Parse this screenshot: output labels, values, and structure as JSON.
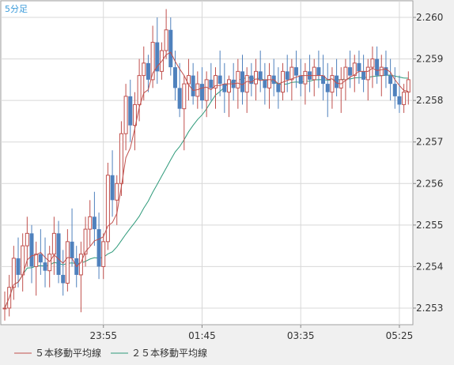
{
  "chart_data": {
    "type": "candlestick",
    "period_label": "5分足",
    "ylim": [
      2.2526,
      2.2604
    ],
    "y_ticks": [
      "2.260",
      "2.259",
      "2.258",
      "2.257",
      "2.256",
      "2.255",
      "2.254",
      "2.253"
    ],
    "x_ticks": [
      "23:55",
      "01:45",
      "03:35",
      "05:25"
    ],
    "grid": true,
    "legend_position": "bottom-left",
    "legend": [
      {
        "label": "５本移動平均線",
        "color": "#c0504d"
      },
      {
        "label": "２５本移動平均線",
        "color": "#2e9a7a"
      }
    ],
    "colors": {
      "up": "#c0504d",
      "down": "#4f81bd",
      "grid": "#d8d8d8",
      "plot_bg": "#ffffff"
    },
    "candles": [
      [
        2.253,
        2.2534,
        2.2527,
        2.253
      ],
      [
        2.253,
        2.2538,
        2.2528,
        2.2535
      ],
      [
        2.2535,
        2.2545,
        2.2532,
        2.2542
      ],
      [
        2.2542,
        2.2547,
        2.2535,
        2.2538
      ],
      [
        2.2538,
        2.2548,
        2.2534,
        2.2545
      ],
      [
        2.2545,
        2.2552,
        2.254,
        2.2548
      ],
      [
        2.2548,
        2.255,
        2.2536,
        2.254
      ],
      [
        2.254,
        2.2546,
        2.2533,
        2.2543
      ],
      [
        2.2543,
        2.2549,
        2.2538,
        2.2541
      ],
      [
        2.2541,
        2.2547,
        2.2535,
        2.2539
      ],
      [
        2.2539,
        2.2545,
        2.2535,
        2.2543
      ],
      [
        2.2543,
        2.2552,
        2.2538,
        2.2548
      ],
      [
        2.2548,
        2.2551,
        2.2536,
        2.2538
      ],
      [
        2.2538,
        2.2544,
        2.2533,
        2.2536
      ],
      [
        2.2536,
        2.2549,
        2.2534,
        2.2546
      ],
      [
        2.2546,
        2.2554,
        2.254,
        2.2542
      ],
      [
        2.2542,
        2.2545,
        2.2535,
        2.2538
      ],
      [
        2.2538,
        2.2546,
        2.2529,
        2.2543
      ],
      [
        2.2543,
        2.2552,
        2.254,
        2.2549
      ],
      [
        2.2549,
        2.2556,
        2.2545,
        2.2552
      ],
      [
        2.2552,
        2.2558,
        2.2545,
        2.2549
      ],
      [
        2.2549,
        2.2553,
        2.2537,
        2.254
      ],
      [
        2.254,
        2.2548,
        2.2537,
        2.2546
      ],
      [
        2.2546,
        2.2565,
        2.2544,
        2.2562
      ],
      [
        2.2562,
        2.2568,
        2.2552,
        2.2556
      ],
      [
        2.2556,
        2.2562,
        2.255,
        2.256
      ],
      [
        2.256,
        2.2575,
        2.2557,
        2.2572
      ],
      [
        2.2572,
        2.2584,
        2.2568,
        2.2581
      ],
      [
        2.2581,
        2.2585,
        2.257,
        2.2574
      ],
      [
        2.2574,
        2.2582,
        2.2568,
        2.2579
      ],
      [
        2.2579,
        2.259,
        2.2575,
        2.2586
      ],
      [
        2.2586,
        2.2593,
        2.258,
        2.2589
      ],
      [
        2.2589,
        2.2591,
        2.2582,
        2.2585
      ],
      [
        2.2585,
        2.2598,
        2.2583,
        2.2594
      ],
      [
        2.2594,
        2.26,
        2.2584,
        2.2587
      ],
      [
        2.2587,
        2.2594,
        2.2585,
        2.2592
      ],
      [
        2.2592,
        2.2602,
        2.259,
        2.2597
      ],
      [
        2.2597,
        2.26,
        2.2586,
        2.2588
      ],
      [
        2.2588,
        2.2592,
        2.258,
        2.2583
      ],
      [
        2.2583,
        2.2589,
        2.2576,
        2.2578
      ],
      [
        2.2578,
        2.2586,
        2.2568,
        2.2584
      ],
      [
        2.2584,
        2.259,
        2.258,
        2.2586
      ],
      [
        2.2586,
        2.2589,
        2.2579,
        2.2581
      ],
      [
        2.2581,
        2.2587,
        2.2578,
        2.2584
      ],
      [
        2.2584,
        2.2588,
        2.2578,
        2.258
      ],
      [
        2.258,
        2.2587,
        2.2576,
        2.2585
      ],
      [
        2.2585,
        2.2589,
        2.258,
        2.2583
      ],
      [
        2.2583,
        2.2588,
        2.2578,
        2.2586
      ],
      [
        2.2586,
        2.2592,
        2.2581,
        2.2584
      ],
      [
        2.2584,
        2.2589,
        2.2577,
        2.2582
      ],
      [
        2.2582,
        2.2586,
        2.2576,
        2.2585
      ],
      [
        2.2585,
        2.2589,
        2.258,
        2.2583
      ],
      [
        2.2583,
        2.259,
        2.2578,
        2.2587
      ],
      [
        2.2587,
        2.2591,
        2.2579,
        2.2582
      ],
      [
        2.2582,
        2.2588,
        2.2577,
        2.2586
      ],
      [
        2.2586,
        2.2589,
        2.2581,
        2.2584
      ],
      [
        2.2584,
        2.259,
        2.258,
        2.2587
      ],
      [
        2.2587,
        2.2592,
        2.2582,
        2.2585
      ],
      [
        2.2585,
        2.2589,
        2.2579,
        2.2583
      ],
      [
        2.2583,
        2.2589,
        2.2578,
        2.2586
      ],
      [
        2.2586,
        2.259,
        2.2581,
        2.2584
      ],
      [
        2.2584,
        2.2588,
        2.2578,
        2.2582
      ],
      [
        2.2582,
        2.2589,
        2.258,
        2.2587
      ],
      [
        2.2587,
        2.2591,
        2.2582,
        2.2585
      ],
      [
        2.2585,
        2.259,
        2.258,
        2.2588
      ],
      [
        2.2588,
        2.2592,
        2.2583,
        2.2586
      ],
      [
        2.2586,
        2.259,
        2.2581,
        2.2584
      ],
      [
        2.2584,
        2.2589,
        2.2579,
        2.2587
      ],
      [
        2.2587,
        2.2591,
        2.2582,
        2.2585
      ],
      [
        2.2585,
        2.259,
        2.2581,
        2.2588
      ],
      [
        2.2588,
        2.2592,
        2.2583,
        2.2586
      ],
      [
        2.2586,
        2.2591,
        2.258,
        2.2584
      ],
      [
        2.2584,
        2.2589,
        2.2576,
        2.2582
      ],
      [
        2.2582,
        2.2588,
        2.2578,
        2.2586
      ],
      [
        2.2586,
        2.259,
        2.2581,
        2.2583
      ],
      [
        2.2583,
        2.2588,
        2.2577,
        2.2585
      ],
      [
        2.2585,
        2.259,
        2.258,
        2.2588
      ],
      [
        2.2588,
        2.2592,
        2.2583,
        2.2586
      ],
      [
        2.2586,
        2.2591,
        2.2582,
        2.2589
      ],
      [
        2.2589,
        2.2592,
        2.2584,
        2.2587
      ],
      [
        2.2587,
        2.2591,
        2.2582,
        2.2585
      ],
      [
        2.2585,
        2.259,
        2.258,
        2.2588
      ],
      [
        2.2588,
        2.2593,
        2.2583,
        2.259
      ],
      [
        2.259,
        2.2593,
        2.2584,
        2.2586
      ],
      [
        2.2586,
        2.2591,
        2.2581,
        2.2588
      ],
      [
        2.2588,
        2.2592,
        2.2583,
        2.2586
      ],
      [
        2.2586,
        2.259,
        2.258,
        2.2584
      ],
      [
        2.2584,
        2.2588,
        2.2578,
        2.2581
      ],
      [
        2.2581,
        2.2586,
        2.2577,
        2.2579
      ],
      [
        2.2579,
        2.2584,
        2.2577,
        2.2582
      ],
      [
        2.2582,
        2.2587,
        2.2579,
        2.2585
      ]
    ]
  }
}
